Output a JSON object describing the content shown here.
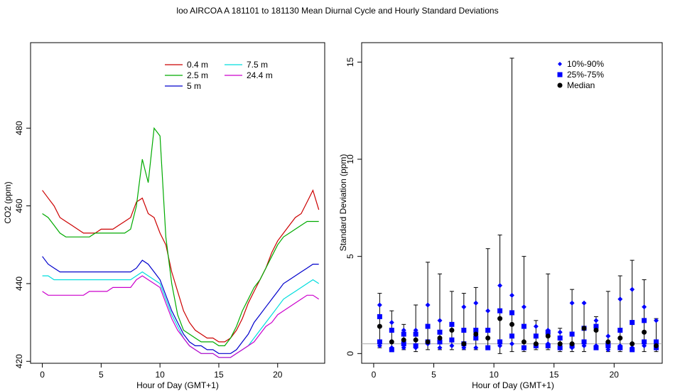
{
  "figure": {
    "title": "loo   AIRCOA A   181101 to 181130   Mean Diurnal Cycle and Hourly Standard Deviations"
  },
  "chart_data": [
    {
      "type": "line",
      "xlabel": "Hour of Day (GMT+1)",
      "ylabel": "CO2 (ppm)",
      "xlim": [
        -1,
        24
      ],
      "ylim": [
        419.5,
        502
      ],
      "xticks": [
        0,
        5,
        10,
        15,
        20
      ],
      "yticks": [
        420,
        440,
        460,
        480
      ],
      "legend_position": "top-center",
      "x": [
        0,
        0.5,
        1,
        1.5,
        2,
        2.5,
        3,
        3.5,
        4,
        4.5,
        5,
        5.5,
        6,
        6.5,
        7,
        7.5,
        8,
        8.5,
        9,
        9.5,
        10,
        10.5,
        11,
        11.5,
        12,
        12.5,
        13,
        13.5,
        14,
        14.5,
        15,
        15.5,
        16,
        16.5,
        17,
        17.5,
        18,
        18.5,
        19,
        19.5,
        20,
        20.5,
        21,
        21.5,
        22,
        22.5,
        23,
        23.5
      ],
      "series": [
        {
          "name": "0.4 m",
          "color": "#cc0000",
          "values": [
            464,
            462,
            460,
            457,
            456,
            455,
            454,
            453,
            453,
            453,
            454,
            454,
            454,
            455,
            456,
            457,
            461,
            462,
            458,
            457,
            453,
            450,
            443,
            438,
            433,
            430,
            428,
            427,
            426,
            426,
            425,
            425,
            426,
            428,
            431,
            435,
            438,
            441,
            444,
            448,
            451,
            453,
            455,
            457,
            458,
            461,
            464,
            459
          ]
        },
        {
          "name": "2.5 m",
          "color": "#00aa00",
          "values": [
            458,
            457,
            455,
            453,
            452,
            452,
            452,
            452,
            452,
            453,
            453,
            453,
            453,
            453,
            453,
            454,
            460,
            472,
            466,
            480,
            478,
            452,
            440,
            432,
            428,
            427,
            426,
            425,
            425,
            425,
            424,
            424,
            426,
            429,
            433,
            436,
            439,
            441,
            444,
            447,
            450,
            452,
            453,
            454,
            455,
            456,
            456,
            456
          ]
        },
        {
          "name": "5 m",
          "color": "#0000cc",
          "values": [
            447,
            445,
            444,
            443,
            443,
            443,
            443,
            443,
            443,
            443,
            443,
            443,
            443,
            443,
            443,
            443,
            444,
            446,
            445,
            443,
            441,
            437,
            433,
            430,
            427,
            425,
            424,
            424,
            423,
            423,
            422,
            422,
            422,
            423,
            425,
            427,
            430,
            432,
            434,
            436,
            438,
            440,
            441,
            442,
            443,
            444,
            445,
            445
          ]
        },
        {
          "name": "7.5 m",
          "color": "#00dddd",
          "values": [
            442,
            442,
            441,
            441,
            441,
            441,
            441,
            441,
            441,
            441,
            441,
            441,
            441,
            441,
            441,
            441,
            442,
            443,
            442,
            441,
            440,
            436,
            432,
            429,
            426,
            424,
            423,
            422,
            422,
            422,
            421,
            421,
            421,
            422,
            423,
            424,
            426,
            428,
            430,
            432,
            434,
            436,
            437,
            438,
            439,
            440,
            441,
            440
          ]
        },
        {
          "name": "24.4 m",
          "color": "#cc00cc",
          "values": [
            438,
            437,
            437,
            437,
            437,
            437,
            437,
            437,
            438,
            438,
            438,
            438,
            439,
            439,
            439,
            439,
            441,
            442,
            441,
            440,
            439,
            435,
            431,
            428,
            426,
            424,
            423,
            422,
            422,
            422,
            421,
            421,
            421,
            422,
            423,
            424,
            425,
            427,
            429,
            430,
            432,
            433,
            434,
            435,
            436,
            437,
            437,
            436
          ]
        }
      ]
    },
    {
      "type": "scatter",
      "xlabel": "Hour of Day (GMT+1)",
      "ylabel": "Standard Deviation (ppm)",
      "xlim": [
        -1,
        24
      ],
      "ylim": [
        -0.5,
        16
      ],
      "xticks": [
        0,
        5,
        10,
        15,
        20
      ],
      "yticks": [
        0,
        5,
        10,
        15
      ],
      "reference_line": 0.5,
      "legend_position": "top-right",
      "legend": [
        {
          "label": "10%-90%",
          "marker": "diamond"
        },
        {
          "label": "25%-75%",
          "marker": "square"
        },
        {
          "label": "Median",
          "marker": "circle"
        }
      ],
      "hours": [
        0.5,
        1.5,
        2.5,
        3.5,
        4.5,
        5.5,
        6.5,
        7.5,
        8.5,
        9.5,
        10.5,
        11.5,
        12.5,
        13.5,
        14.5,
        15.5,
        16.5,
        17.5,
        18.5,
        19.5,
        20.5,
        21.5,
        22.5,
        23.5
      ],
      "p10": [
        0.4,
        0.3,
        0.3,
        0.3,
        0.5,
        0.3,
        0.4,
        0.3,
        0.3,
        0.3,
        0.4,
        0.5,
        0.3,
        0.5,
        0.5,
        0.3,
        0.3,
        0.4,
        0.4,
        0.2,
        0.4,
        0.3,
        0.4,
        0.3
      ],
      "p90": [
        2.5,
        1.6,
        1.2,
        1.2,
        2.5,
        1.7,
        1.5,
        2.4,
        2.6,
        2.2,
        3.5,
        3.0,
        2.4,
        1.4,
        1.2,
        1.1,
        2.6,
        2.6,
        1.7,
        0.9,
        2.8,
        3.3,
        2.4,
        1.7
      ],
      "p25": [
        0.6,
        0.2,
        0.5,
        0.4,
        0.6,
        0.6,
        0.7,
        0.5,
        0.8,
        0.3,
        0.6,
        0.9,
        0.3,
        0.4,
        0.4,
        0.3,
        0.4,
        0.6,
        0.3,
        0.4,
        0.3,
        0.2,
        0.6,
        0.3
      ],
      "p75": [
        1.9,
        1.2,
        1.0,
        1.0,
        1.4,
        1.1,
        1.5,
        1.2,
        1.2,
        1.2,
        2.2,
        2.1,
        1.4,
        0.9,
        1.1,
        0.8,
        1.0,
        1.3,
        1.4,
        0.5,
        1.2,
        1.6,
        1.7,
        0.6
      ],
      "median": [
        1.4,
        0.6,
        0.7,
        0.7,
        0.6,
        0.8,
        1.2,
        0.5,
        1.0,
        0.8,
        1.8,
        1.5,
        0.6,
        0.5,
        0.9,
        0.5,
        0.5,
        1.3,
        1.2,
        0.6,
        0.8,
        0.5,
        1.1,
        0.4
      ],
      "whisker_max": [
        3.1,
        2.2,
        1.5,
        2.5,
        4.7,
        4.1,
        3.2,
        3.1,
        3.4,
        5.4,
        6.1,
        15.2,
        5.0,
        1.7,
        4.1,
        1.3,
        3.3,
        2.6,
        1.9,
        3.2,
        4.0,
        4.8,
        3.8,
        1.8
      ],
      "whisker_min": [
        0.3,
        0.1,
        0.2,
        0.1,
        0.2,
        0.2,
        0.2,
        0.2,
        0.2,
        0.2,
        0.0,
        0.1,
        0.1,
        0.2,
        0.2,
        0.1,
        0.1,
        0.1,
        0.2,
        0.1,
        0.1,
        0.1,
        0.1,
        0.1
      ]
    }
  ]
}
